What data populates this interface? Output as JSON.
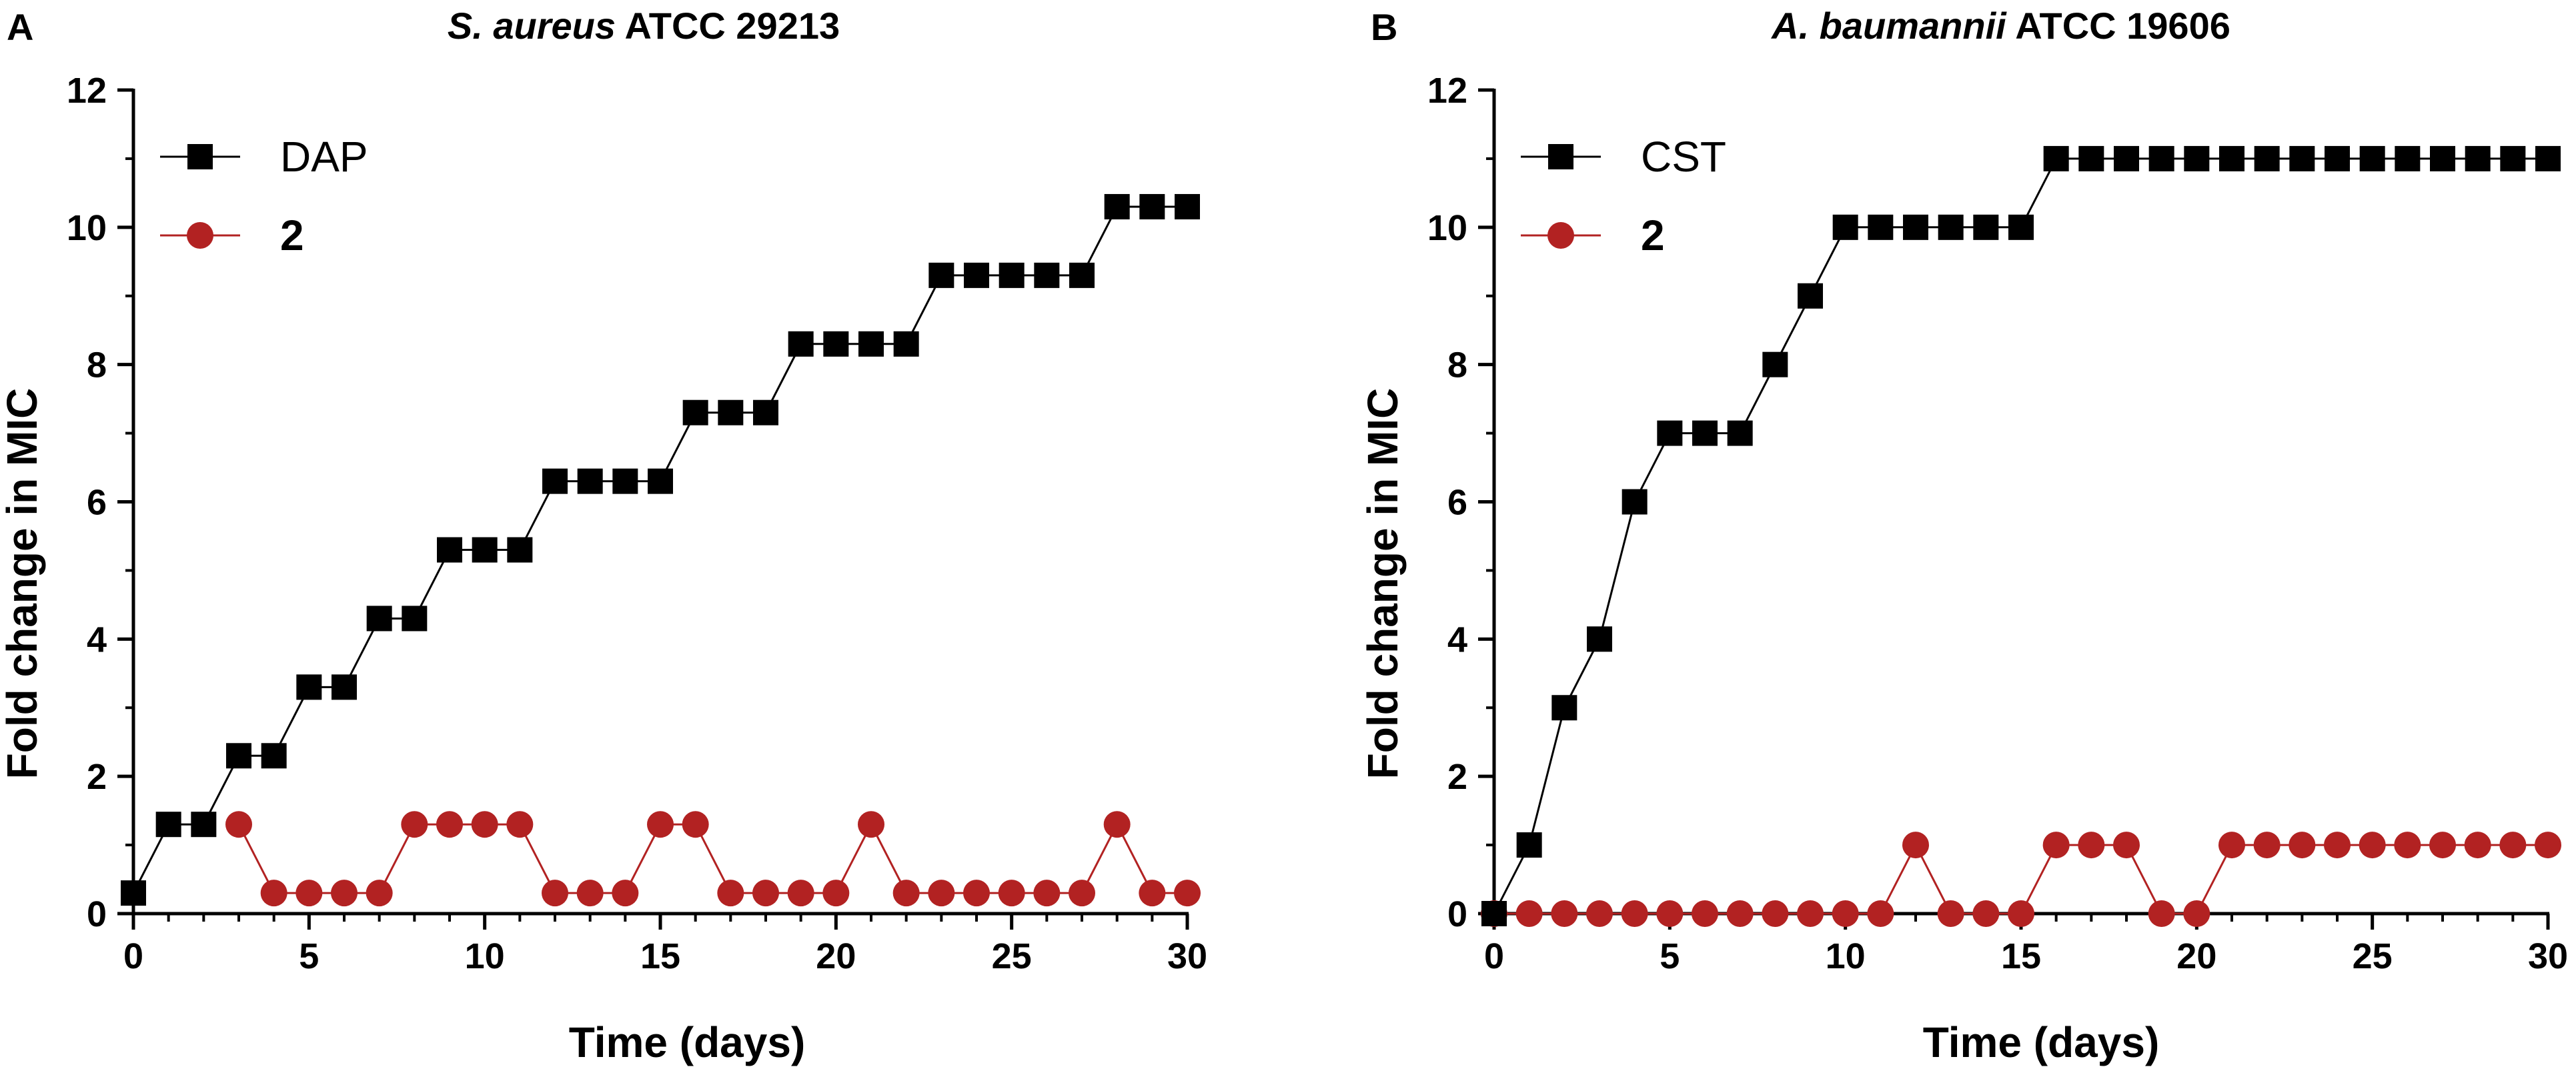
{
  "chart_data": [
    {
      "type": "line",
      "panel": "A",
      "title_italic": "S. aureus",
      "title_rest": " ATCC 29213",
      "xlabel": "Time (days)",
      "ylabel": "Fold change in MIC",
      "xlim": [
        0,
        30
      ],
      "ylim": [
        0,
        12
      ],
      "xticks": [
        0,
        5,
        10,
        15,
        20,
        25,
        30
      ],
      "yticks": [
        0,
        2,
        4,
        6,
        8,
        10,
        12
      ],
      "legend_position": "top-left",
      "series": [
        {
          "name": "DAP",
          "marker": "square",
          "color": "#000000",
          "x": [
            0,
            1,
            2,
            3,
            4,
            5,
            6,
            7,
            8,
            9,
            10,
            11,
            12,
            13,
            14,
            15,
            16,
            17,
            18,
            19,
            20,
            21,
            22,
            23,
            24,
            25,
            26,
            27,
            28,
            29,
            30
          ],
          "y": [
            0.3,
            1.3,
            1.3,
            2.3,
            2.3,
            3.3,
            3.3,
            4.3,
            4.3,
            5.3,
            5.3,
            5.3,
            6.3,
            6.3,
            6.3,
            6.3,
            7.3,
            7.3,
            7.3,
            8.3,
            8.3,
            8.3,
            8.3,
            9.3,
            9.3,
            9.3,
            9.3,
            9.3,
            10.3,
            10.3,
            10.3
          ]
        },
        {
          "name": "2",
          "marker": "circle",
          "color": "#b22222",
          "x": [
            3,
            4,
            5,
            6,
            7,
            8,
            9,
            10,
            11,
            12,
            13,
            14,
            15,
            16,
            17,
            18,
            19,
            20,
            21,
            22,
            23,
            24,
            25,
            26,
            27,
            28,
            29,
            30
          ],
          "y": [
            1.3,
            0.3,
            0.3,
            0.3,
            0.3,
            1.3,
            1.3,
            1.3,
            1.3,
            0.3,
            0.3,
            0.3,
            1.3,
            1.3,
            0.3,
            0.3,
            0.3,
            0.3,
            1.3,
            0.3,
            0.3,
            0.3,
            0.3,
            0.3,
            0.3,
            1.3,
            0.3,
            0.3
          ]
        }
      ]
    },
    {
      "type": "line",
      "panel": "B",
      "title_italic": "A. baumannii",
      "title_rest": " ATCC 19606",
      "xlabel": "Time (days)",
      "ylabel": "Fold change in MIC",
      "xlim": [
        0,
        30
      ],
      "ylim": [
        0,
        12
      ],
      "xticks": [
        0,
        5,
        10,
        15,
        20,
        25,
        30
      ],
      "yticks": [
        0,
        2,
        4,
        6,
        8,
        10,
        12
      ],
      "legend_position": "top-left",
      "series": [
        {
          "name": "CST",
          "marker": "square",
          "color": "#000000",
          "x": [
            0,
            1,
            2,
            3,
            4,
            5,
            6,
            7,
            8,
            9,
            10,
            11,
            12,
            13,
            14,
            15,
            16,
            17,
            18,
            19,
            20,
            21,
            22,
            23,
            24,
            25,
            26,
            27,
            28,
            29,
            30
          ],
          "y": [
            0,
            1,
            3,
            4,
            6,
            7,
            7,
            7,
            8,
            9,
            10,
            10,
            10,
            10,
            10,
            10,
            11,
            11,
            11,
            11,
            11,
            11,
            11,
            11,
            11,
            11,
            11,
            11,
            11,
            11,
            11
          ]
        },
        {
          "name": "2",
          "marker": "circle",
          "color": "#b22222",
          "x": [
            0,
            1,
            2,
            3,
            4,
            5,
            6,
            7,
            8,
            9,
            10,
            11,
            12,
            13,
            14,
            15,
            16,
            17,
            18,
            19,
            20,
            21,
            22,
            23,
            24,
            25,
            26,
            27,
            28,
            29,
            30
          ],
          "y": [
            0,
            0,
            0,
            0,
            0,
            0,
            0,
            0,
            0,
            0,
            0,
            0,
            1,
            0,
            0,
            0,
            1,
            1,
            1,
            0,
            0,
            1,
            1,
            1,
            1,
            1,
            1,
            1,
            1,
            1,
            1
          ]
        }
      ]
    }
  ]
}
